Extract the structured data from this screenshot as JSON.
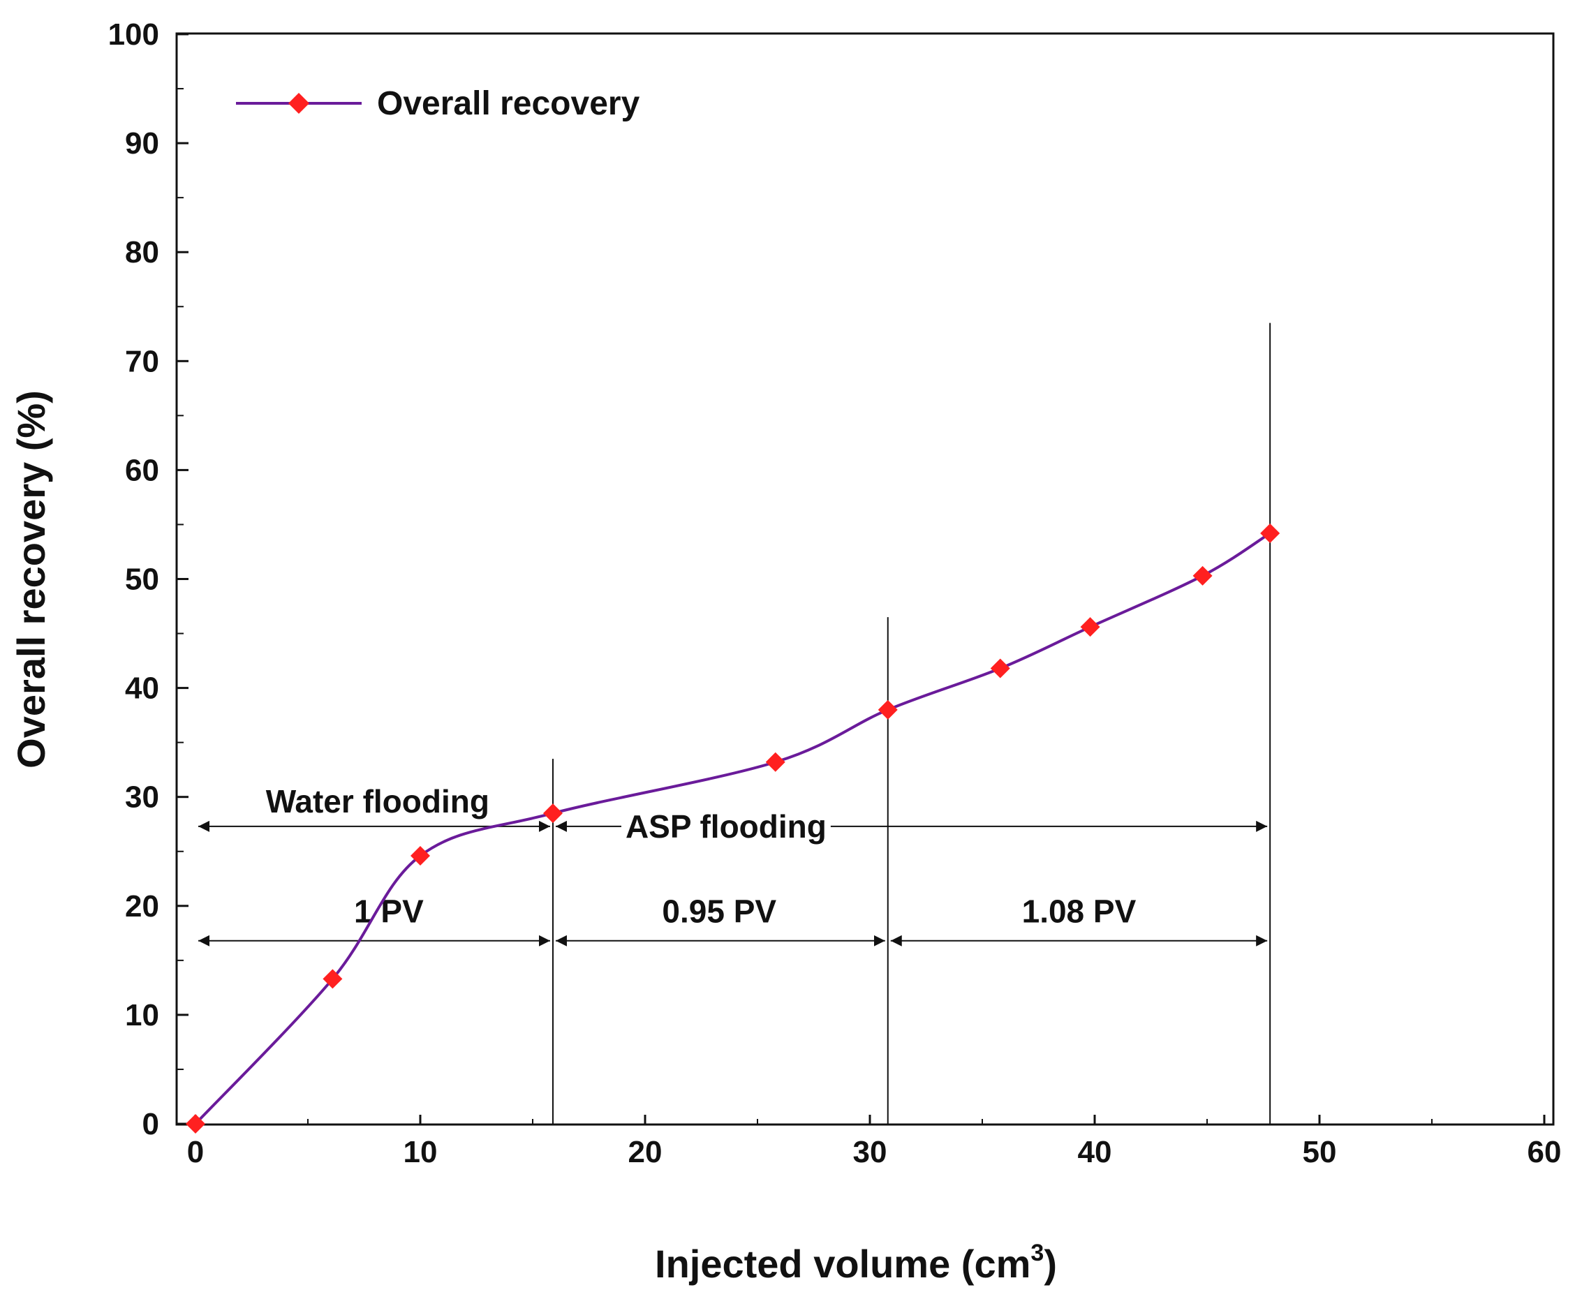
{
  "chart_data": {
    "type": "line",
    "title": "",
    "xlabel": "Injected volume (cm",
    "xlabel_sup": "3",
    "xlabel_close": ")",
    "ylabel": "Overall recovery (%)",
    "xlim": [
      0,
      60
    ],
    "ylim": [
      0,
      100
    ],
    "xticks": [
      0,
      10,
      20,
      30,
      40,
      50,
      60
    ],
    "yticks": [
      0,
      10,
      20,
      30,
      40,
      50,
      60,
      70,
      80,
      90,
      100
    ],
    "grid": false,
    "legend": {
      "position": "top-left",
      "entries": [
        "Overall recovery"
      ]
    },
    "series": [
      {
        "name": "Overall recovery",
        "line_color": "#6a1b9a",
        "marker_color": "#ff2020",
        "marker": "diamond",
        "x": [
          0,
          6.1,
          10,
          15.9,
          25.8,
          30.8,
          35.8,
          39.8,
          44.8,
          47.8
        ],
        "y": [
          0,
          13.3,
          24.6,
          28.5,
          33.2,
          38.0,
          41.8,
          45.6,
          50.3,
          54.2
        ]
      }
    ],
    "phase_lines": [
      {
        "x": 15.9,
        "y_top": 33.5
      },
      {
        "x": 30.8,
        "y_top": 46.5
      },
      {
        "x": 47.8,
        "y_top": 73.5
      }
    ],
    "annotations": {
      "water_flooding": {
        "text": "Water flooding",
        "x_from": 0,
        "x_to": 15.9,
        "arrow_y": 27.3,
        "text_x": 8.1,
        "text_y": 29.6
      },
      "asp_flooding": {
        "text": "ASP flooding",
        "x_from": 15.9,
        "x_to": 47.8,
        "arrow_y": 27.3,
        "text_x": 23.6,
        "text_y": 27.3
      },
      "pore_volumes": [
        {
          "text": "1 PV",
          "x_from": 0,
          "x_to": 15.9,
          "arrow_y": 16.8,
          "text_x": 8.6,
          "text_y": 19.5
        },
        {
          "text": "0.95 PV",
          "x_from": 15.9,
          "x_to": 30.8,
          "arrow_y": 16.8,
          "text_x": 23.3,
          "text_y": 19.5
        },
        {
          "text": "1.08 PV",
          "x_from": 30.8,
          "x_to": 47.8,
          "arrow_y": 16.8,
          "text_x": 39.3,
          "text_y": 19.5
        }
      ]
    }
  }
}
